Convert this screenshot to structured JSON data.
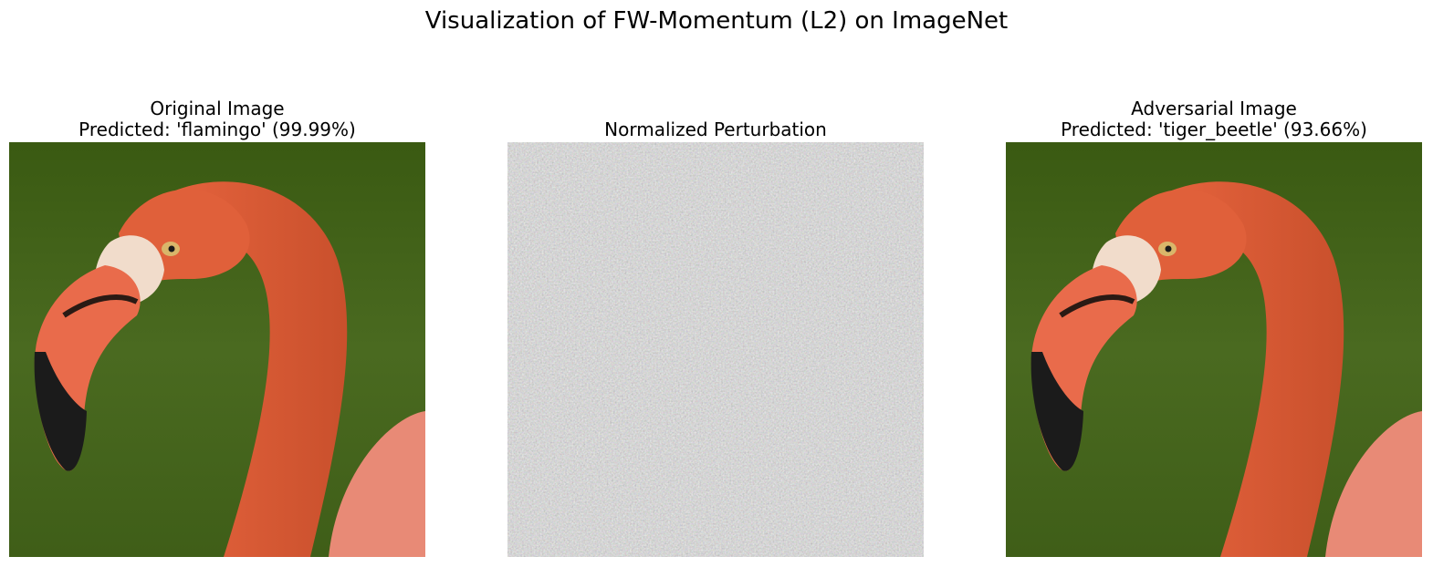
{
  "figure": {
    "title": "Visualization of FW-Momentum (L2) on ImageNet"
  },
  "panels": [
    {
      "title_line1": "Original Image",
      "title_line2": "Predicted: 'flamingo' (99.99%)",
      "image": "flamingo-head-photo"
    },
    {
      "title_line1": "Normalized Perturbation",
      "title_line2": "",
      "image": "gray-noise-perturbation"
    },
    {
      "title_line1": "Adversarial Image",
      "title_line2": "Predicted: 'tiger_beetle' (93.66%)",
      "image": "flamingo-head-photo"
    }
  ],
  "colors": {
    "background_green": "#3d5f1a",
    "flamingo_orange": "#e0603a",
    "perturbation_gray": "#8a8a88"
  }
}
